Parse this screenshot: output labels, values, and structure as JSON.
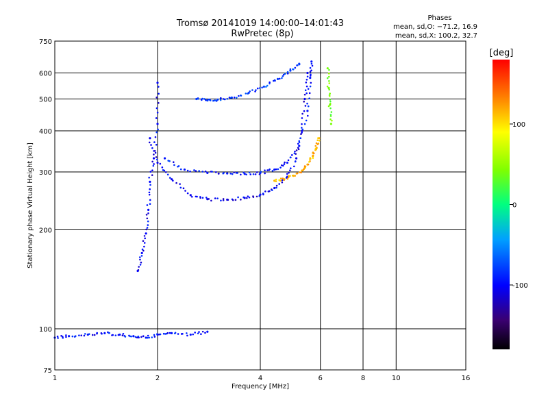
{
  "chart_data": {
    "type": "scatter",
    "title": "Tromsø 20141019 14:00:00–14:01:43",
    "subtitle": "RwPretec (8p)",
    "xlabel": "Frequency [MHz]",
    "ylabel": "Stationary phase Virtual Height [km]",
    "xscale": "log",
    "yscale": "log",
    "xlim": [
      1,
      16
    ],
    "ylim": [
      75,
      750
    ],
    "xticks": [
      1,
      2,
      4,
      6,
      8,
      10,
      16
    ],
    "yticks": [
      75,
      100,
      200,
      300,
      400,
      500,
      600,
      750
    ],
    "grid": true,
    "phase_box": {
      "title": "Phases",
      "line1": "mean, sd,O: −71.2, 16.9",
      "line2": "mean, sd,X: 100.2, 32.7"
    },
    "colorbar": {
      "label": "[deg]",
      "range": [
        -180,
        180
      ],
      "ticks": [
        100,
        0,
        -100
      ]
    },
    "series": [
      {
        "name": "O-mode F-trace (lower)",
        "phase": -105,
        "x": [
          1.9,
          2.0,
          2.2,
          2.5,
          2.8,
          3.2,
          3.6,
          4.0,
          4.4,
          4.8,
          5.1,
          5.3,
          5.4,
          5.5
        ],
        "y": [
          380,
          320,
          285,
          255,
          248,
          247,
          250,
          256,
          268,
          290,
          330,
          400,
          500,
          600
        ]
      },
      {
        "name": "X-mode F-trace",
        "phase": -95,
        "x": [
          2.1,
          2.4,
          2.8,
          3.2,
          3.6,
          4.0,
          4.4,
          4.8,
          5.2,
          5.5,
          5.6,
          5.65
        ],
        "y": [
          330,
          305,
          298,
          297,
          296,
          298,
          305,
          320,
          360,
          460,
          580,
          650
        ]
      },
      {
        "name": "Upper trace",
        "phase": -80,
        "x": [
          2.6,
          2.8,
          3.0,
          3.3,
          3.7,
          4.1,
          4.5,
          4.9,
          5.2
        ],
        "y": [
          500,
          495,
          498,
          505,
          522,
          545,
          575,
          610,
          640
        ]
      },
      {
        "name": "High-phase X trace",
        "phase": 115,
        "x": [
          4.4,
          4.7,
          5.0,
          5.3,
          5.5,
          5.7,
          5.85,
          5.95
        ],
        "y": [
          282,
          285,
          292,
          303,
          316,
          335,
          355,
          380
        ]
      },
      {
        "name": "Steep cusp near 1.9 MHz",
        "phase": -100,
        "x": [
          1.75,
          1.8,
          1.85,
          1.88,
          1.9,
          1.95,
          2.0,
          2.0
        ],
        "y": [
          150,
          170,
          195,
          230,
          280,
          330,
          420,
          560
        ]
      },
      {
        "name": "Low-height E echoes",
        "phase": -95,
        "x": [
          1.0,
          1.1,
          1.25,
          1.4,
          1.55,
          1.7,
          1.85,
          2.0,
          2.2,
          2.5,
          2.8
        ],
        "y": [
          94,
          95,
          96,
          97,
          96,
          95,
          94,
          96,
          97,
          96,
          98
        ]
      },
      {
        "name": "Near 6.3 MHz",
        "phase": 40,
        "x": [
          6.3,
          6.35,
          6.4,
          6.45
        ],
        "y": [
          620,
          540,
          480,
          420
        ]
      }
    ]
  }
}
